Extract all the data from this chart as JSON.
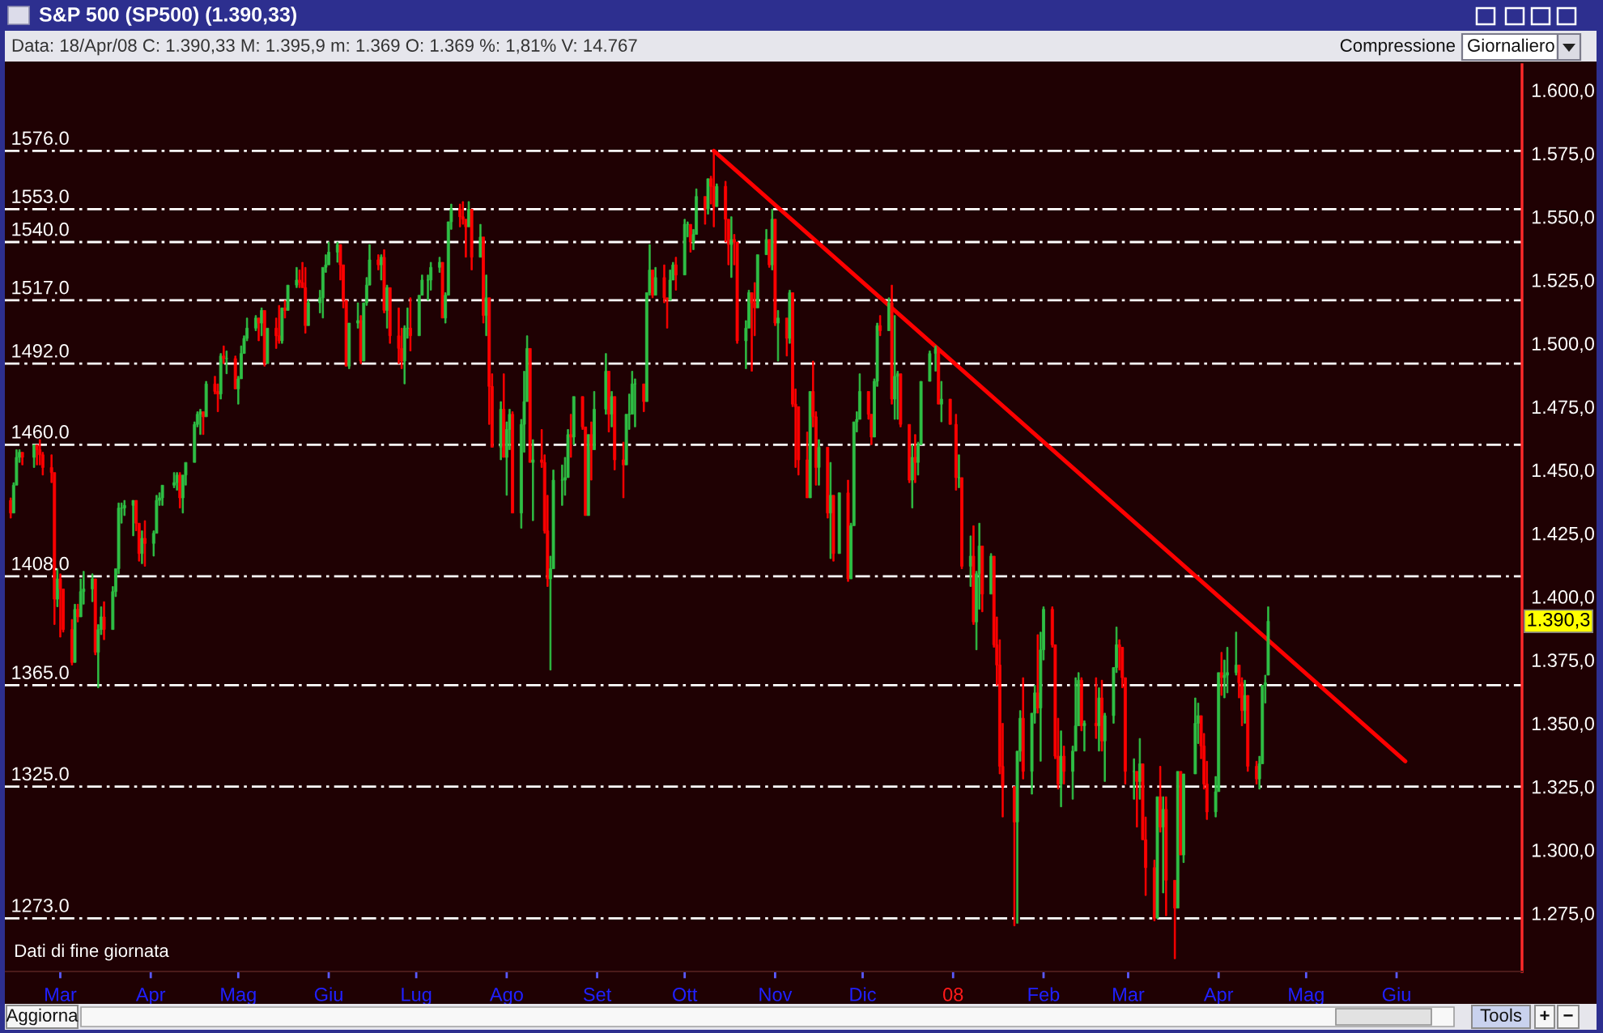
{
  "chart_data": {
    "type": "candlestick",
    "title": "S&P 500 (SP500) (1.390,33)",
    "subtitle": "Data: 18/Apr/08 C: 1.390,33 M: 1.395,9 m: 1.369 O: 1.369 %: 1,81% V: 14.767",
    "x": [
      "2007-02-12",
      "2007-02-13",
      "2007-02-14",
      "2007-02-15",
      "2007-02-16",
      "2007-02-20",
      "2007-02-21",
      "2007-02-22",
      "2007-02-23",
      "2007-02-26",
      "2007-02-27",
      "2007-02-28",
      "2007-03-01",
      "2007-03-02",
      "2007-03-05",
      "2007-03-06",
      "2007-03-07",
      "2007-03-08",
      "2007-03-09",
      "2007-03-12",
      "2007-03-13",
      "2007-03-14",
      "2007-03-15",
      "2007-03-16",
      "2007-03-19",
      "2007-03-20",
      "2007-03-21",
      "2007-03-22",
      "2007-03-23",
      "2007-03-26",
      "2007-03-27",
      "2007-03-28",
      "2007-03-29",
      "2007-03-30",
      "2007-04-02",
      "2007-04-03",
      "2007-04-04",
      "2007-04-05",
      "2007-04-09",
      "2007-04-10",
      "2007-04-11",
      "2007-04-12",
      "2007-04-13",
      "2007-04-16",
      "2007-04-17",
      "2007-04-18",
      "2007-04-19",
      "2007-04-20",
      "2007-04-23",
      "2007-04-24",
      "2007-04-25",
      "2007-04-26",
      "2007-04-27",
      "2007-04-30",
      "2007-05-01",
      "2007-05-02",
      "2007-05-03",
      "2007-05-04",
      "2007-05-07",
      "2007-05-08",
      "2007-05-09",
      "2007-05-10",
      "2007-05-11",
      "2007-05-14",
      "2007-05-15",
      "2007-05-16",
      "2007-05-17",
      "2007-05-18",
      "2007-05-21",
      "2007-05-22",
      "2007-05-23",
      "2007-05-24",
      "2007-05-25",
      "2007-05-29",
      "2007-05-30",
      "2007-05-31",
      "2007-06-01",
      "2007-06-04",
      "2007-06-05",
      "2007-06-06",
      "2007-06-07",
      "2007-06-08",
      "2007-06-11",
      "2007-06-12",
      "2007-06-13",
      "2007-06-14",
      "2007-06-15",
      "2007-06-18",
      "2007-06-19",
      "2007-06-20",
      "2007-06-21",
      "2007-06-22",
      "2007-06-25",
      "2007-06-26",
      "2007-06-27",
      "2007-06-28",
      "2007-06-29",
      "2007-07-02",
      "2007-07-03",
      "2007-07-05",
      "2007-07-06",
      "2007-07-09",
      "2007-07-10",
      "2007-07-11",
      "2007-07-12",
      "2007-07-13",
      "2007-07-16",
      "2007-07-17",
      "2007-07-18",
      "2007-07-19",
      "2007-07-20",
      "2007-07-23",
      "2007-07-24",
      "2007-07-25",
      "2007-07-26",
      "2007-07-27",
      "2007-07-30",
      "2007-07-31",
      "2007-08-01",
      "2007-08-02",
      "2007-08-03",
      "2007-08-06",
      "2007-08-07",
      "2007-08-08",
      "2007-08-09",
      "2007-08-10",
      "2007-08-13",
      "2007-08-14",
      "2007-08-15",
      "2007-08-16",
      "2007-08-17",
      "2007-08-20",
      "2007-08-21",
      "2007-08-22",
      "2007-08-23",
      "2007-08-24",
      "2007-08-27",
      "2007-08-28",
      "2007-08-29",
      "2007-08-30",
      "2007-08-31",
      "2007-09-04",
      "2007-09-05",
      "2007-09-06",
      "2007-09-07",
      "2007-09-10",
      "2007-09-11",
      "2007-09-12",
      "2007-09-13",
      "2007-09-14",
      "2007-09-17",
      "2007-09-18",
      "2007-09-19",
      "2007-09-20",
      "2007-09-21",
      "2007-09-24",
      "2007-09-25",
      "2007-09-26",
      "2007-09-27",
      "2007-09-28",
      "2007-10-01",
      "2007-10-02",
      "2007-10-03",
      "2007-10-04",
      "2007-10-05",
      "2007-10-08",
      "2007-10-09",
      "2007-10-10",
      "2007-10-11",
      "2007-10-12",
      "2007-10-15",
      "2007-10-16",
      "2007-10-17",
      "2007-10-18",
      "2007-10-19",
      "2007-10-22",
      "2007-10-23",
      "2007-10-24",
      "2007-10-25",
      "2007-10-26",
      "2007-10-29",
      "2007-10-30",
      "2007-10-31",
      "2007-11-01",
      "2007-11-02",
      "2007-11-05",
      "2007-11-06",
      "2007-11-07",
      "2007-11-08",
      "2007-11-09",
      "2007-11-12",
      "2007-11-13",
      "2007-11-14",
      "2007-11-15",
      "2007-11-16",
      "2007-11-19",
      "2007-11-20",
      "2007-11-21",
      "2007-11-23",
      "2007-11-26",
      "2007-11-27",
      "2007-11-28",
      "2007-11-29",
      "2007-11-30",
      "2007-12-03",
      "2007-12-04",
      "2007-12-05",
      "2007-12-06",
      "2007-12-07",
      "2007-12-10",
      "2007-12-11",
      "2007-12-12",
      "2007-12-13",
      "2007-12-14",
      "2007-12-17",
      "2007-12-18",
      "2007-12-19",
      "2007-12-20",
      "2007-12-21",
      "2007-12-24",
      "2007-12-26",
      "2007-12-27",
      "2007-12-28",
      "2007-12-31",
      "2008-01-02",
      "2008-01-03",
      "2008-01-04",
      "2008-01-07",
      "2008-01-08",
      "2008-01-09",
      "2008-01-10",
      "2008-01-11",
      "2008-01-14",
      "2008-01-15",
      "2008-01-16",
      "2008-01-17",
      "2008-01-18",
      "2008-01-22",
      "2008-01-23",
      "2008-01-24",
      "2008-01-25",
      "2008-01-28",
      "2008-01-29",
      "2008-01-30",
      "2008-01-31",
      "2008-02-01",
      "2008-02-04",
      "2008-02-05",
      "2008-02-06",
      "2008-02-07",
      "2008-02-08",
      "2008-02-11",
      "2008-02-12",
      "2008-02-13",
      "2008-02-14",
      "2008-02-15",
      "2008-02-19",
      "2008-02-20",
      "2008-02-21",
      "2008-02-22",
      "2008-02-25",
      "2008-02-26",
      "2008-02-27",
      "2008-02-28",
      "2008-02-29",
      "2008-03-03",
      "2008-03-04",
      "2008-03-05",
      "2008-03-06",
      "2008-03-07",
      "2008-03-10",
      "2008-03-11",
      "2008-03-12",
      "2008-03-13",
      "2008-03-14",
      "2008-03-17",
      "2008-03-18",
      "2008-03-19",
      "2008-03-20",
      "2008-03-24",
      "2008-03-25",
      "2008-03-26",
      "2008-03-27",
      "2008-03-28",
      "2008-03-31",
      "2008-04-01",
      "2008-04-02",
      "2008-04-03",
      "2008-04-04",
      "2008-04-07",
      "2008-04-08",
      "2008-04-09",
      "2008-04-10",
      "2008-04-11",
      "2008-04-14",
      "2008-04-15",
      "2008-04-16",
      "2008-04-17",
      "2008-04-18"
    ],
    "ohlc": [
      [
        1438,
        1439,
        1431,
        1433
      ],
      [
        1433,
        1445,
        1433,
        1444
      ],
      [
        1444,
        1458,
        1444,
        1455
      ],
      [
        1455,
        1458,
        1453,
        1457
      ],
      [
        1457,
        1457,
        1452,
        1455
      ],
      [
        1455,
        1460,
        1451,
        1460
      ],
      [
        1460,
        1460,
        1452,
        1458
      ],
      [
        1458,
        1462,
        1452,
        1456
      ],
      [
        1456,
        1457,
        1448,
        1451
      ],
      [
        1451,
        1456,
        1445,
        1449
      ],
      [
        1449,
        1449,
        1389,
        1399
      ],
      [
        1399,
        1411,
        1396,
        1407
      ],
      [
        1407,
        1409,
        1384,
        1403
      ],
      [
        1403,
        1403,
        1386,
        1387
      ],
      [
        1387,
        1391,
        1373,
        1374
      ],
      [
        1374,
        1397,
        1374,
        1395
      ],
      [
        1395,
        1397,
        1390,
        1392
      ],
      [
        1392,
        1407,
        1392,
        1402
      ],
      [
        1402,
        1410,
        1397,
        1403
      ],
      [
        1403,
        1409,
        1398,
        1407
      ],
      [
        1407,
        1407,
        1377,
        1378
      ],
      [
        1378,
        1389,
        1364,
        1387
      ],
      [
        1387,
        1396,
        1385,
        1392
      ],
      [
        1392,
        1398,
        1383,
        1387
      ],
      [
        1387,
        1404,
        1387,
        1402
      ],
      [
        1402,
        1411,
        1400,
        1411
      ],
      [
        1411,
        1437,
        1409,
        1435
      ],
      [
        1435,
        1437,
        1429,
        1435
      ],
      [
        1435,
        1438,
        1432,
        1436
      ],
      [
        1436,
        1438,
        1424,
        1438
      ],
      [
        1438,
        1438,
        1426,
        1429
      ],
      [
        1429,
        1429,
        1414,
        1417
      ],
      [
        1417,
        1426,
        1413,
        1423
      ],
      [
        1423,
        1430,
        1412,
        1421
      ],
      [
        1421,
        1426,
        1416,
        1425
      ],
      [
        1425,
        1440,
        1425,
        1438
      ],
      [
        1438,
        1441,
        1436,
        1439
      ],
      [
        1439,
        1444,
        1436,
        1444
      ],
      [
        1444,
        1449,
        1443,
        1445
      ],
      [
        1445,
        1449,
        1442,
        1448
      ],
      [
        1448,
        1449,
        1435,
        1439
      ],
      [
        1439,
        1448,
        1433,
        1448
      ],
      [
        1448,
        1453,
        1444,
        1453
      ],
      [
        1453,
        1469,
        1453,
        1468
      ],
      [
        1468,
        1473,
        1467,
        1472
      ],
      [
        1472,
        1474,
        1464,
        1473
      ],
      [
        1473,
        1473,
        1464,
        1471
      ],
      [
        1471,
        1485,
        1471,
        1484
      ],
      [
        1484,
        1487,
        1480,
        1481
      ],
      [
        1481,
        1484,
        1473,
        1480
      ],
      [
        1480,
        1496,
        1478,
        1495
      ],
      [
        1495,
        1499,
        1492,
        1494
      ],
      [
        1494,
        1497,
        1488,
        1494
      ],
      [
        1494,
        1495,
        1482,
        1482
      ],
      [
        1482,
        1487,
        1476,
        1486
      ],
      [
        1486,
        1499,
        1486,
        1496
      ],
      [
        1496,
        1503,
        1496,
        1502
      ],
      [
        1502,
        1510,
        1501,
        1506
      ],
      [
        1506,
        1511,
        1505,
        1510
      ],
      [
        1510,
        1510,
        1501,
        1508
      ],
      [
        1508,
        1514,
        1503,
        1513
      ],
      [
        1513,
        1513,
        1491,
        1492
      ],
      [
        1492,
        1506,
        1492,
        1506
      ],
      [
        1506,
        1510,
        1498,
        1503
      ],
      [
        1503,
        1515,
        1500,
        1501
      ],
      [
        1501,
        1514,
        1500,
        1514
      ],
      [
        1514,
        1517,
        1510,
        1513
      ],
      [
        1513,
        1523,
        1513,
        1523
      ],
      [
        1523,
        1530,
        1522,
        1525
      ],
      [
        1525,
        1529,
        1522,
        1524
      ],
      [
        1524,
        1532,
        1522,
        1522
      ],
      [
        1522,
        1530,
        1504,
        1507
      ],
      [
        1507,
        1517,
        1507,
        1516
      ],
      [
        1516,
        1521,
        1512,
        1518
      ],
      [
        1518,
        1530,
        1510,
        1530
      ],
      [
        1530,
        1535,
        1528,
        1531
      ],
      [
        1531,
        1540,
        1531,
        1536
      ],
      [
        1536,
        1540,
        1532,
        1539
      ],
      [
        1539,
        1539,
        1525,
        1531
      ],
      [
        1531,
        1531,
        1514,
        1517
      ],
      [
        1517,
        1517,
        1491,
        1491
      ],
      [
        1491,
        1508,
        1490,
        1508
      ],
      [
        1508,
        1516,
        1506,
        1509
      ],
      [
        1509,
        1511,
        1492,
        1493
      ],
      [
        1493,
        1516,
        1493,
        1516
      ],
      [
        1516,
        1526,
        1515,
        1523
      ],
      [
        1523,
        1539,
        1523,
        1533
      ],
      [
        1533,
        1535,
        1529,
        1531
      ],
      [
        1531,
        1535,
        1525,
        1534
      ],
      [
        1534,
        1537,
        1512,
        1513
      ],
      [
        1513,
        1523,
        1506,
        1522
      ],
      [
        1522,
        1522,
        1500,
        1503
      ],
      [
        1503,
        1514,
        1492,
        1498
      ],
      [
        1498,
        1506,
        1490,
        1493
      ],
      [
        1493,
        1507,
        1484,
        1506
      ],
      [
        1506,
        1514,
        1502,
        1506
      ],
      [
        1506,
        1518,
        1497,
        1503
      ],
      [
        1503,
        1519,
        1503,
        1519
      ],
      [
        1519,
        1527,
        1519,
        1525
      ],
      [
        1525,
        1527,
        1517,
        1525
      ],
      [
        1525,
        1532,
        1521,
        1530
      ],
      [
        1530,
        1534,
        1528,
        1532
      ],
      [
        1532,
        1532,
        1510,
        1510
      ],
      [
        1510,
        1520,
        1508,
        1519
      ],
      [
        1519,
        1548,
        1519,
        1548
      ],
      [
        1548,
        1555,
        1545,
        1553
      ],
      [
        1553,
        1555,
        1546,
        1550
      ],
      [
        1550,
        1556,
        1547,
        1549
      ],
      [
        1549,
        1549,
        1534,
        1546
      ],
      [
        1546,
        1556,
        1546,
        1553
      ],
      [
        1553,
        1553,
        1529,
        1534
      ],
      [
        1534,
        1547,
        1534,
        1542
      ],
      [
        1542,
        1542,
        1508,
        1511
      ],
      [
        1511,
        1527,
        1503,
        1518
      ],
      [
        1518,
        1518,
        1468,
        1483
      ],
      [
        1483,
        1488,
        1459,
        1459
      ],
      [
        1459,
        1477,
        1454,
        1474
      ],
      [
        1474,
        1488,
        1455,
        1455
      ],
      [
        1455,
        1469,
        1440,
        1466
      ],
      [
        1466,
        1474,
        1458,
        1472
      ],
      [
        1472,
        1473,
        1433,
        1433
      ],
      [
        1433,
        1470,
        1427,
        1468
      ],
      [
        1468,
        1489,
        1457,
        1477
      ],
      [
        1477,
        1503,
        1477,
        1498
      ],
      [
        1498,
        1498,
        1453,
        1453
      ],
      [
        1453,
        1462,
        1430,
        1454
      ],
      [
        1454,
        1466,
        1451,
        1453
      ],
      [
        1453,
        1456,
        1425,
        1426
      ],
      [
        1426,
        1440,
        1404,
        1407
      ],
      [
        1407,
        1416,
        1371,
        1411
      ],
      [
        1411,
        1450,
        1411,
        1446
      ],
      [
        1446,
        1452,
        1436,
        1446
      ],
      [
        1446,
        1455,
        1440,
        1447
      ],
      [
        1447,
        1466,
        1447,
        1464
      ],
      [
        1464,
        1472,
        1455,
        1463
      ],
      [
        1463,
        1479,
        1460,
        1479
      ],
      [
        1479,
        1479,
        1466,
        1467
      ],
      [
        1467,
        1467,
        1432,
        1432
      ],
      [
        1432,
        1464,
        1432,
        1464
      ],
      [
        1464,
        1469,
        1446,
        1458
      ],
      [
        1458,
        1481,
        1458,
        1474
      ],
      [
        1474,
        1496,
        1472,
        1489
      ],
      [
        1489,
        1489,
        1465,
        1472
      ],
      [
        1472,
        1481,
        1467,
        1479
      ],
      [
        1479,
        1479,
        1450,
        1454
      ],
      [
        1454,
        1461,
        1439,
        1452
      ],
      [
        1452,
        1472,
        1452,
        1472
      ],
      [
        1472,
        1480,
        1466,
        1472
      ],
      [
        1472,
        1489,
        1472,
        1484
      ],
      [
        1484,
        1486,
        1467,
        1484
      ],
      [
        1484,
        1484,
        1473,
        1477
      ],
      [
        1477,
        1520,
        1477,
        1520
      ],
      [
        1520,
        1539,
        1519,
        1529
      ],
      [
        1529,
        1529,
        1518,
        1519
      ],
      [
        1519,
        1530,
        1519,
        1526
      ],
      [
        1526,
        1531,
        1516,
        1518
      ],
      [
        1518,
        1518,
        1506,
        1517
      ],
      [
        1517,
        1529,
        1517,
        1525
      ],
      [
        1525,
        1532,
        1525,
        1531
      ],
      [
        1531,
        1534,
        1521,
        1527
      ],
      [
        1527,
        1549,
        1527,
        1547
      ],
      [
        1547,
        1548,
        1542,
        1547
      ],
      [
        1547,
        1547,
        1536,
        1540
      ],
      [
        1540,
        1545,
        1537,
        1543
      ],
      [
        1543,
        1561,
        1543,
        1558
      ],
      [
        1558,
        1558,
        1547,
        1553
      ],
      [
        1553,
        1565,
        1551,
        1565
      ],
      [
        1565,
        1566,
        1555,
        1562
      ],
      [
        1562,
        1576,
        1546,
        1554
      ],
      [
        1554,
        1563,
        1554,
        1562
      ],
      [
        1562,
        1564,
        1540,
        1549
      ],
      [
        1549,
        1549,
        1531,
        1539
      ],
      [
        1539,
        1550,
        1526,
        1541
      ],
      [
        1541,
        1543,
        1531,
        1540
      ],
      [
        1540,
        1540,
        1500,
        1501
      ],
      [
        1501,
        1509,
        1490,
        1506
      ],
      [
        1506,
        1521,
        1506,
        1520
      ],
      [
        1520,
        1520,
        1489,
        1516
      ],
      [
        1516,
        1524,
        1503,
        1514
      ],
      [
        1514,
        1535,
        1514,
        1535
      ],
      [
        1535,
        1545,
        1535,
        1541
      ],
      [
        1541,
        1541,
        1530,
        1531
      ],
      [
        1531,
        1553,
        1529,
        1549
      ],
      [
        1549,
        1549,
        1507,
        1508
      ],
      [
        1508,
        1513,
        1493,
        1510
      ],
      [
        1510,
        1510,
        1495,
        1502
      ],
      [
        1502,
        1521,
        1500,
        1520
      ],
      [
        1520,
        1520,
        1475,
        1476
      ],
      [
        1476,
        1482,
        1451,
        1475
      ],
      [
        1475,
        1475,
        1448,
        1454
      ],
      [
        1454,
        1465,
        1439,
        1439
      ],
      [
        1439,
        1481,
        1439,
        1481
      ],
      [
        1481,
        1493,
        1467,
        1471
      ],
      [
        1471,
        1473,
        1444,
        1451
      ],
      [
        1451,
        1462,
        1444,
        1459
      ],
      [
        1459,
        1459,
        1431,
        1433
      ],
      [
        1433,
        1453,
        1415,
        1440
      ],
      [
        1440,
        1440,
        1414,
        1417
      ],
      [
        1417,
        1441,
        1417,
        1441
      ],
      [
        1441,
        1446,
        1406,
        1407
      ],
      [
        1407,
        1429,
        1407,
        1428
      ],
      [
        1428,
        1469,
        1428,
        1469
      ],
      [
        1469,
        1473,
        1465,
        1470
      ],
      [
        1470,
        1488,
        1470,
        1481
      ],
      [
        1481,
        1481,
        1470,
        1472
      ],
      [
        1472,
        1472,
        1460,
        1463
      ],
      [
        1463,
        1486,
        1463,
        1485
      ],
      [
        1485,
        1508,
        1483,
        1507
      ],
      [
        1507,
        1511,
        1503,
        1505
      ],
      [
        1505,
        1518,
        1505,
        1516
      ],
      [
        1516,
        1523,
        1476,
        1478
      ],
      [
        1478,
        1511,
        1470,
        1487
      ],
      [
        1487,
        1489,
        1470,
        1488
      ],
      [
        1488,
        1488,
        1467,
        1468
      ],
      [
        1468,
        1468,
        1445,
        1446
      ],
      [
        1446,
        1460,
        1435,
        1455
      ],
      [
        1455,
        1464,
        1445,
        1453
      ],
      [
        1453,
        1461,
        1448,
        1460
      ],
      [
        1460,
        1485,
        1460,
        1485
      ],
      [
        1485,
        1497,
        1485,
        1496
      ],
      [
        1496,
        1499,
        1489,
        1498
      ],
      [
        1498,
        1498,
        1476,
        1476
      ],
      [
        1476,
        1485,
        1469,
        1478
      ],
      [
        1478,
        1478,
        1468,
        1468
      ],
      [
        1468,
        1472,
        1442,
        1447
      ],
      [
        1447,
        1456,
        1443,
        1447
      ],
      [
        1447,
        1447,
        1411,
        1412
      ],
      [
        1412,
        1424,
        1404,
        1416
      ],
      [
        1416,
        1428,
        1389,
        1390
      ],
      [
        1390,
        1410,
        1379,
        1409
      ],
      [
        1409,
        1429,
        1395,
        1420
      ],
      [
        1420,
        1420,
        1394,
        1401
      ],
      [
        1401,
        1417,
        1401,
        1416
      ],
      [
        1416,
        1416,
        1380,
        1381
      ],
      [
        1381,
        1392,
        1365,
        1373
      ],
      [
        1373,
        1383,
        1330,
        1333
      ],
      [
        1333,
        1350,
        1313,
        1325
      ],
      [
        1325,
        1325,
        1270,
        1311
      ],
      [
        1311,
        1339,
        1271,
        1339
      ],
      [
        1339,
        1355,
        1335,
        1352
      ],
      [
        1352,
        1368,
        1328,
        1331
      ],
      [
        1331,
        1354,
        1322,
        1354
      ],
      [
        1354,
        1365,
        1350,
        1362
      ],
      [
        1362,
        1385,
        1354,
        1356
      ],
      [
        1356,
        1386,
        1335,
        1379
      ],
      [
        1379,
        1396,
        1375,
        1395
      ],
      [
        1395,
        1396,
        1380,
        1381
      ],
      [
        1381,
        1381,
        1336,
        1337
      ],
      [
        1337,
        1352,
        1324,
        1326
      ],
      [
        1326,
        1347,
        1317,
        1337
      ],
      [
        1337,
        1341,
        1326,
        1331
      ],
      [
        1331,
        1341,
        1320,
        1339
      ],
      [
        1339,
        1368,
        1339,
        1349
      ],
      [
        1349,
        1370,
        1349,
        1367
      ],
      [
        1367,
        1368,
        1347,
        1349
      ],
      [
        1349,
        1351,
        1339,
        1350
      ],
      [
        1350,
        1368,
        1344,
        1349
      ],
      [
        1349,
        1364,
        1339,
        1360
      ],
      [
        1360,
        1367,
        1339,
        1343
      ],
      [
        1343,
        1354,
        1327,
        1353
      ],
      [
        1353,
        1372,
        1350,
        1372
      ],
      [
        1372,
        1388,
        1370,
        1381
      ],
      [
        1381,
        1383,
        1371,
        1380
      ],
      [
        1380,
        1380,
        1364,
        1368
      ],
      [
        1368,
        1368,
        1326,
        1331
      ],
      [
        1331,
        1336,
        1320,
        1331
      ],
      [
        1331,
        1331,
        1309,
        1327
      ],
      [
        1327,
        1344,
        1320,
        1334
      ],
      [
        1334,
        1334,
        1304,
        1304
      ],
      [
        1304,
        1313,
        1282,
        1293
      ],
      [
        1293,
        1296,
        1272,
        1273
      ],
      [
        1273,
        1321,
        1273,
        1321
      ],
      [
        1321,
        1333,
        1307,
        1309
      ],
      [
        1309,
        1321,
        1283,
        1316
      ],
      [
        1316,
        1321,
        1274,
        1288
      ],
      [
        1288,
        1288,
        1257,
        1277
      ],
      [
        1277,
        1331,
        1277,
        1331
      ],
      [
        1331,
        1331,
        1298,
        1298
      ],
      [
        1298,
        1330,
        1295,
        1330
      ],
      [
        1330,
        1360,
        1330,
        1350
      ],
      [
        1350,
        1358,
        1342,
        1353
      ],
      [
        1353,
        1353,
        1336,
        1341
      ],
      [
        1341,
        1346,
        1324,
        1326
      ],
      [
        1326,
        1335,
        1312,
        1315
      ],
      [
        1315,
        1329,
        1313,
        1323
      ],
      [
        1323,
        1370,
        1323,
        1370
      ],
      [
        1370,
        1378,
        1361,
        1368
      ],
      [
        1368,
        1375,
        1360,
        1369
      ],
      [
        1369,
        1380,
        1362,
        1370
      ],
      [
        1370,
        1386,
        1369,
        1373
      ],
      [
        1373,
        1373,
        1360,
        1366
      ],
      [
        1366,
        1368,
        1349,
        1355
      ],
      [
        1355,
        1367,
        1350,
        1361
      ],
      [
        1361,
        1361,
        1331,
        1333
      ],
      [
        1333,
        1335,
        1326,
        1328
      ],
      [
        1328,
        1337,
        1324,
        1334
      ],
      [
        1334,
        1365,
        1334,
        1365
      ],
      [
        1365,
        1369,
        1358,
        1366
      ],
      [
        1369,
        1396,
        1369,
        1390.3
      ]
    ],
    "series": [
      {
        "type": "line",
        "x": [
          "2007-10-11",
          "2008-06-04"
        ],
        "values": [
          1576,
          1335
        ],
        "color": "#ff0000"
      }
    ],
    "xlim": [
      "2007-02-10",
      "2008-07-14"
    ],
    "xticks": [
      {
        "value": "2007-03-01",
        "label": "Mar"
      },
      {
        "value": "2007-04-01",
        "label": "Apr"
      },
      {
        "value": "2007-05-01",
        "label": "Mag"
      },
      {
        "value": "2007-06-01",
        "label": "Giu"
      },
      {
        "value": "2007-07-01",
        "label": "Lug"
      },
      {
        "value": "2007-08-01",
        "label": "Ago"
      },
      {
        "value": "2007-09-01",
        "label": "Set"
      },
      {
        "value": "2007-10-01",
        "label": "Ott"
      },
      {
        "value": "2007-11-01",
        "label": "Nov"
      },
      {
        "value": "2007-12-01",
        "label": "Dic"
      },
      {
        "value": "2008-01-01",
        "label": "08"
      },
      {
        "value": "2008-02-01",
        "label": "Feb"
      },
      {
        "value": "2008-03-01",
        "label": "Mar"
      },
      {
        "value": "2008-04-01",
        "label": "Apr"
      },
      {
        "value": "2008-05-01",
        "label": "Mag"
      },
      {
        "value": "2008-06-01",
        "label": "Giu"
      }
    ],
    "ylim": [
      1252,
      1610
    ],
    "yticks": [
      {
        "value": 1275,
        "label": "1.275,0"
      },
      {
        "value": 1300,
        "label": "1.300,0"
      },
      {
        "value": 1325,
        "label": "1.325,0"
      },
      {
        "value": 1350,
        "label": "1.350,0"
      },
      {
        "value": 1375,
        "label": "1.375,0"
      },
      {
        "value": 1400,
        "label": "1.400,0"
      },
      {
        "value": 1425,
        "label": "1.425,0"
      },
      {
        "value": 1450,
        "label": "1.450,0"
      },
      {
        "value": 1475,
        "label": "1.475,0"
      },
      {
        "value": 1500,
        "label": "1.500,0"
      },
      {
        "value": 1525,
        "label": "1.525,0"
      },
      {
        "value": 1550,
        "label": "1.550,0"
      },
      {
        "value": 1575,
        "label": "1.575,0"
      },
      {
        "value": 1600,
        "label": "1.600,0"
      }
    ],
    "ref_lines": [
      {
        "axis": "y",
        "value": 1576,
        "label": "1576.0",
        "color": "#ffffff",
        "line_style": "dashed"
      },
      {
        "axis": "y",
        "value": 1553,
        "label": "1553.0",
        "color": "#ffffff",
        "line_style": "dashed"
      },
      {
        "axis": "y",
        "value": 1540,
        "label": "1540.0",
        "color": "#ffffff",
        "line_style": "dashed"
      },
      {
        "axis": "y",
        "value": 1517,
        "label": "1517.0",
        "color": "#ffffff",
        "line_style": "dashed"
      },
      {
        "axis": "y",
        "value": 1492,
        "label": "1492.0",
        "color": "#ffffff",
        "line_style": "dashed"
      },
      {
        "axis": "y",
        "value": 1460,
        "label": "1460.0",
        "color": "#ffffff",
        "line_style": "dashed"
      },
      {
        "axis": "y",
        "value": 1408,
        "label": "1408.0",
        "color": "#ffffff",
        "line_style": "dashed"
      },
      {
        "axis": "y",
        "value": 1365,
        "label": "1365.0",
        "color": "#ffffff",
        "line_style": "dashed"
      },
      {
        "axis": "y",
        "value": 1325,
        "label": "1325.0",
        "color": "#ffffff",
        "line_style": "dashed"
      },
      {
        "axis": "y",
        "value": 1273,
        "label": "1273.0",
        "color": "#ffffff",
        "line_style": "dashed"
      }
    ],
    "annotations": [
      "Dati di fine giornata",
      "Compressione",
      "Giornaliero",
      "Aggiorna",
      "Tools",
      "+",
      "−",
      {
        "text": "1.390,3",
        "y": 1390.3
      }
    ]
  }
}
